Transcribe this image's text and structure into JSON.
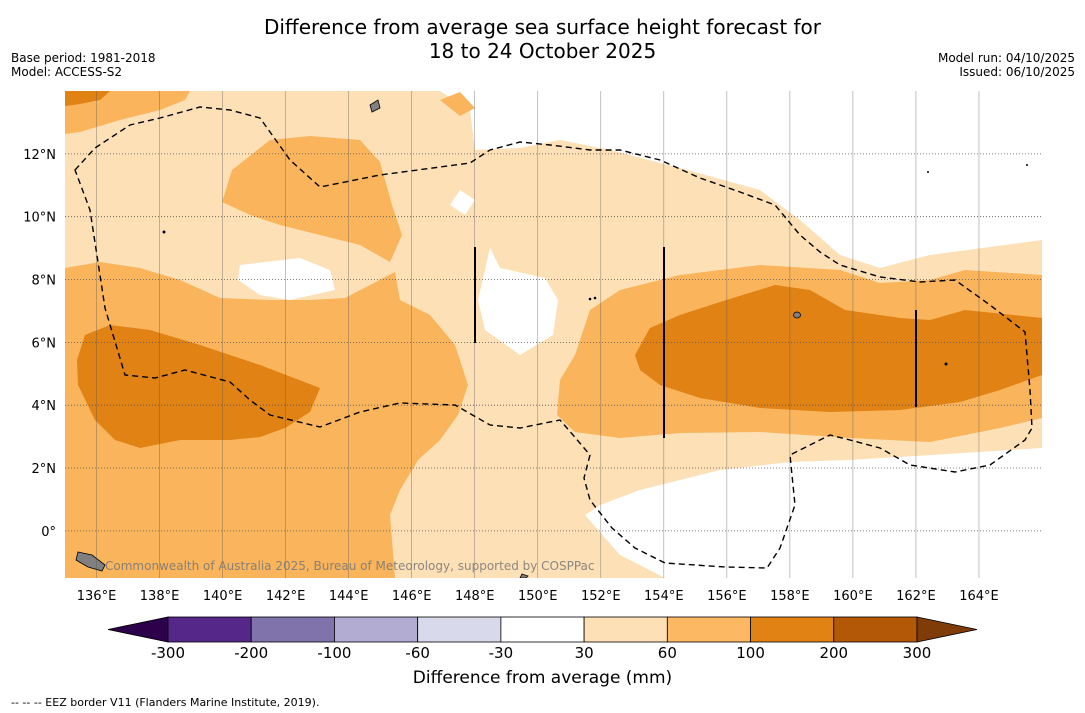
{
  "title": {
    "line1": "Difference from average sea surface height forecast for",
    "line2": "18 to 24 October 2025"
  },
  "meta_left": {
    "base_period": "Base period: 1981-2018",
    "model": "Model: ACCESS-S2"
  },
  "meta_right": {
    "model_run": "Model run: 04/10/2025",
    "issued": "Issued: 06/10/2025"
  },
  "map": {
    "lon_range": [
      135,
      166
    ],
    "lat_range": [
      -1.5,
      14
    ],
    "lon_ticks": [
      "136°E",
      "138°E",
      "140°E",
      "142°E",
      "144°E",
      "146°E",
      "148°E",
      "150°E",
      "152°E",
      "154°E",
      "156°E",
      "158°E",
      "160°E",
      "162°E",
      "164°E"
    ],
    "lat_ticks": [
      "12°N",
      "10°N",
      "8°N",
      "6°N",
      "4°N",
      "2°N",
      "0°"
    ],
    "watermark": "Commonwealth of Australia 2025, Bureau of Meteorology, supported by COSPPac",
    "colors": {
      "land": "#808080",
      "neutral": "#ffffff",
      "c30_60": "#fde0b5",
      "c60_100": "#f9b45c",
      "c100_200": "#e08214",
      "c200_300": "#b35806",
      "eez": "#000000"
    }
  },
  "colorbar": {
    "title": "Difference from average (mm)",
    "labels": [
      "-300",
      "-200",
      "-100",
      "-60",
      "-30",
      "30",
      "60",
      "100",
      "200",
      "300"
    ],
    "colors": [
      "#2d004b",
      "#542788",
      "#8073ac",
      "#b2abd2",
      "#d8daeb",
      "#ffffff",
      "#fee0b6",
      "#fdb863",
      "#e08214",
      "#b35806",
      "#7f3b08"
    ]
  },
  "footnote": "--  --  -- EEZ border V11 (Flanders Marine Institute, 2019)."
}
